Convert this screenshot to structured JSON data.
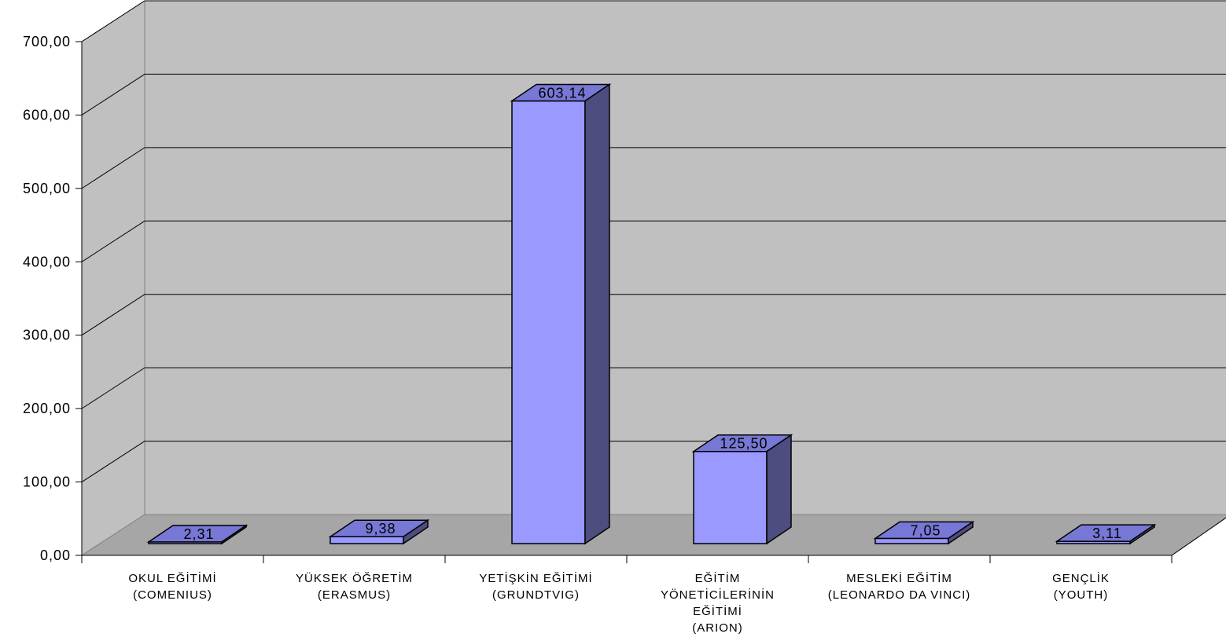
{
  "chart_data": {
    "type": "bar",
    "title": "",
    "xlabel": "",
    "ylabel": "",
    "ylim": [
      0,
      700
    ],
    "grid": true,
    "three_d": true,
    "y_ticks": [
      "0,00",
      "100,00",
      "200,00",
      "300,00",
      "400,00",
      "500,00",
      "600,00",
      "700,00"
    ],
    "categories": [
      [
        "OKUL EĞİTİMİ",
        "(COMENIUS)"
      ],
      [
        "YÜKSEK ÖĞRETİM",
        "(ERASMUS)"
      ],
      [
        "YETİŞKİN EĞİTİMİ",
        "(GRUNDTVIG)"
      ],
      [
        "EĞİTİM",
        "YÖNETİCİLERİNİN",
        "EĞİTİMİ",
        "(ARION)"
      ],
      [
        "MESLEKİ EĞİTİM",
        "(LEONARDO DA VINCI)"
      ],
      [
        "GENÇLİK",
        "(YOUTH)"
      ]
    ],
    "values": [
      2.31,
      9.38,
      603.14,
      125.5,
      7.05,
      3.11
    ],
    "data_labels": [
      "2,31",
      "9,38",
      "603,14",
      "125,50",
      "7,05",
      "3,11"
    ],
    "colors": {
      "bar_front": "#9999ff",
      "bar_top": "#7777d6",
      "bar_side": "#4d4d80",
      "wall": "#c0c0c0",
      "floor": "#a6a6a6",
      "grid": "#000000"
    }
  }
}
